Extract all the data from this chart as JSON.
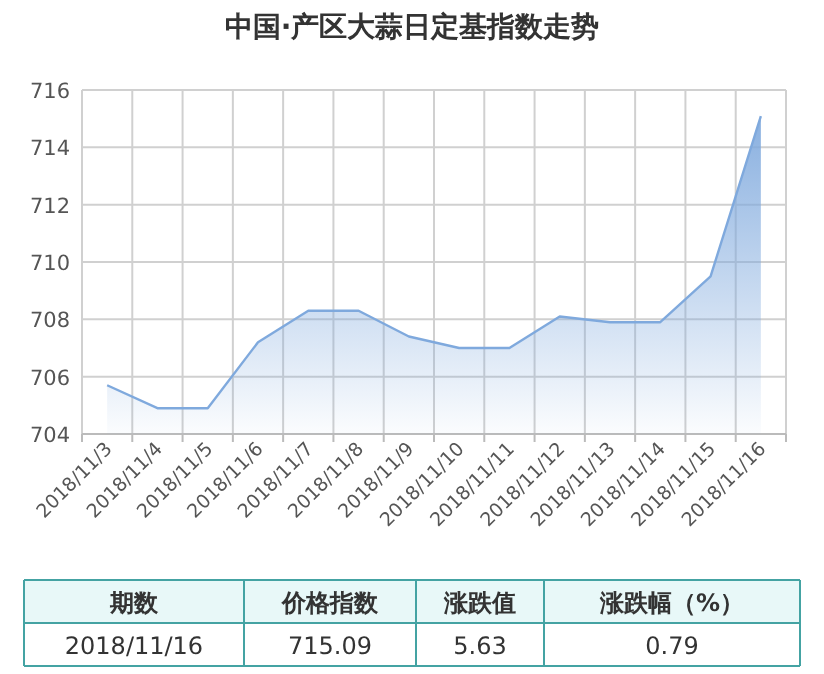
{
  "chart_data": [
    {
      "type": "area",
      "title": "中国·产区大蒜日定基指数走势",
      "categories": [
        "2018/11/3",
        "2018/11/4",
        "2018/11/5",
        "2018/11/6",
        "2018/11/7",
        "2018/11/8",
        "2018/11/9",
        "2018/11/10",
        "2018/11/11",
        "2018/11/12",
        "2018/11/13",
        "2018/11/14",
        "2018/11/15",
        "2018/11/16"
      ],
      "series": [
        {
          "color": "#7fa9dd",
          "values": [
            705.7,
            704.9,
            704.9,
            707.2,
            708.3,
            708.3,
            707.4,
            707.0,
            707.0,
            708.1,
            707.9,
            707.9,
            709.5,
            715.09
          ]
        }
      ],
      "ylim": [
        704,
        716
      ],
      "yticks": [
        704,
        706,
        708,
        710,
        712,
        714,
        716
      ],
      "grid": true,
      "marker": "none",
      "line_style": "solid"
    },
    {
      "type": "other",
      "annotations": [
        "期数",
        "价格指数",
        "涨跌值",
        "涨跌幅（%）",
        "2018/11/16",
        "715.09",
        "5.63",
        "0.79"
      ]
    }
  ]
}
